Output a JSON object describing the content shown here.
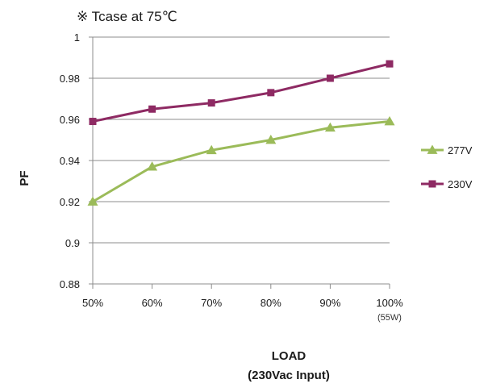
{
  "chart_data": {
    "type": "line",
    "annotation": "※ Tcase at 75℃",
    "categories": [
      "50%",
      "60%",
      "70%",
      "80%",
      "90%",
      "100%"
    ],
    "category_sublabels": [
      "",
      "",
      "",
      "",
      "",
      "(55W)"
    ],
    "xlabel": "LOAD",
    "xlabel_sub": "(230Vac Input)",
    "ylabel": "PF",
    "ylim": [
      0.88,
      1.0
    ],
    "yticks": [
      0.88,
      0.9,
      0.92,
      0.94,
      0.96,
      0.98,
      1.0
    ],
    "ytick_labels": [
      "0.88",
      "0.9",
      "0.92",
      "0.94",
      "0.96",
      "0.98",
      "1"
    ],
    "grid": "horizontal",
    "legend_position": "right",
    "series": [
      {
        "name": "277V",
        "color": "#9bbb59",
        "marker": "triangle",
        "values": [
          0.92,
          0.937,
          0.945,
          0.95,
          0.956,
          0.959
        ]
      },
      {
        "name": "230V",
        "color": "#8e2a63",
        "marker": "square",
        "values": [
          0.959,
          0.965,
          0.968,
          0.973,
          0.98,
          0.987
        ]
      }
    ]
  }
}
